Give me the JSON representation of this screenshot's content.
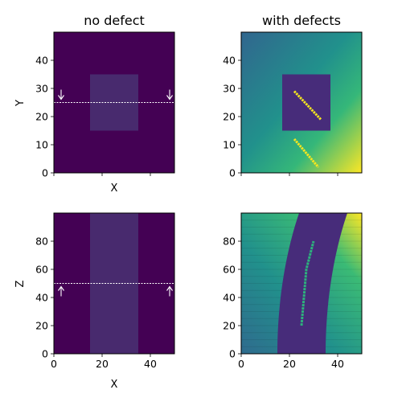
{
  "colors": {
    "viridis_dark": "#440154",
    "slab_faint": "#482a6e",
    "slab_dark": "#472c7a",
    "green": "#2db27d",
    "yellow": "#f5e61f",
    "dashed_line": "#ffffff"
  },
  "chart_data": [
    {
      "type": "heatmap",
      "title": "no defect",
      "xlabel": "X",
      "ylabel": "Y",
      "xlim": [
        0,
        50
      ],
      "ylim": [
        0,
        50
      ],
      "xticks": [
        0,
        20,
        40
      ],
      "show_xtick_labels": false,
      "yticks": [
        0,
        10,
        20,
        30,
        40
      ],
      "ytick_labels": [
        "0",
        "10",
        "20",
        "30",
        "40"
      ],
      "background": "uniform dark",
      "inclusion": {
        "x": [
          15,
          35
        ],
        "y": [
          15,
          35
        ]
      },
      "cut_line": {
        "orientation": "horizontal",
        "value": 25
      },
      "arrows": [
        {
          "x": 3,
          "direction": "down"
        },
        {
          "x": 48,
          "direction": "down"
        }
      ]
    },
    {
      "type": "heatmap",
      "title": "with defects",
      "xlim": [
        0,
        50
      ],
      "ylim": [
        0,
        50
      ],
      "xticks": [
        0,
        20,
        40
      ],
      "show_xtick_labels": false,
      "yticks": [
        0,
        10,
        20,
        30,
        40
      ],
      "ytick_labels": [
        "0",
        "10",
        "20",
        "30",
        "40"
      ],
      "background": "diagonal gradient",
      "inclusion": {
        "x": [
          17,
          37
        ],
        "y": [
          15,
          35
        ]
      },
      "defect_lines": [
        {
          "from": [
            22,
            29
          ],
          "to": [
            33,
            19
          ]
        },
        {
          "from": [
            22,
            12
          ],
          "to": [
            32,
            2
          ]
        }
      ]
    },
    {
      "type": "heatmap",
      "xlabel": "X",
      "ylabel": "Z",
      "xlim": [
        0,
        50
      ],
      "ylim": [
        0,
        100
      ],
      "xticks": [
        0,
        20,
        40
      ],
      "xtick_labels": [
        "0",
        "20",
        "40"
      ],
      "yticks": [
        0,
        20,
        40,
        60,
        80
      ],
      "ytick_labels": [
        "0",
        "20",
        "40",
        "60",
        "80"
      ],
      "slab": {
        "x": [
          15,
          35
        ]
      },
      "cut_line": {
        "orientation": "horizontal",
        "value": 50
      },
      "arrows": [
        {
          "x": 3,
          "direction": "up"
        },
        {
          "x": 48,
          "direction": "up"
        }
      ]
    },
    {
      "type": "heatmap",
      "xlim": [
        0,
        50
      ],
      "ylim": [
        0,
        100
      ],
      "xticks": [
        0,
        20,
        40
      ],
      "xtick_labels": [
        "0",
        "20",
        "40"
      ],
      "yticks": [
        0,
        20,
        40,
        60,
        80
      ],
      "ytick_labels": [
        "0",
        "20",
        "40",
        "60",
        "80"
      ],
      "curved_slab": {
        "bottom_x": [
          15,
          35
        ],
        "top_x": [
          24,
          44
        ]
      },
      "defect_curve": [
        [
          25,
          20
        ],
        [
          26,
          40
        ],
        [
          27,
          60
        ],
        [
          30,
          80
        ]
      ]
    }
  ]
}
